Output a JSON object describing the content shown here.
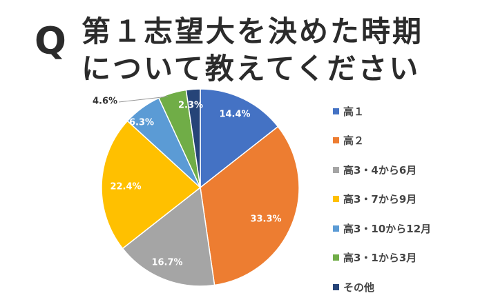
{
  "title": {
    "q": "Q",
    "line1": "第１志望大を決めた時期",
    "line2": "について教えてください"
  },
  "chart_data": {
    "type": "pie",
    "title": "第１志望大を決めた時期について教えてください",
    "start": "top",
    "direction": "clockwise",
    "legend_placement": "right",
    "slices": [
      {
        "name": "高１",
        "value": 14.4,
        "label": "14.4%",
        "color": "#4472C4"
      },
      {
        "name": "高２",
        "value": 33.3,
        "label": "33.3%",
        "color": "#ED7D31"
      },
      {
        "name": "高3・4から6月",
        "value": 16.7,
        "label": "16.7%",
        "color": "#A5A5A5"
      },
      {
        "name": "高3・7から9月",
        "value": 22.4,
        "label": "22.4%",
        "color": "#FFC000"
      },
      {
        "name": "高3・10から12月",
        "value": 6.3,
        "label": "6.3%",
        "color": "#5B9BD5"
      },
      {
        "name": "高3・1から3月",
        "value": 4.6,
        "label": "4.6%",
        "color": "#70AD47"
      },
      {
        "name": "その他",
        "value": 2.3,
        "label": "2.3%",
        "color": "#264478"
      }
    ]
  }
}
